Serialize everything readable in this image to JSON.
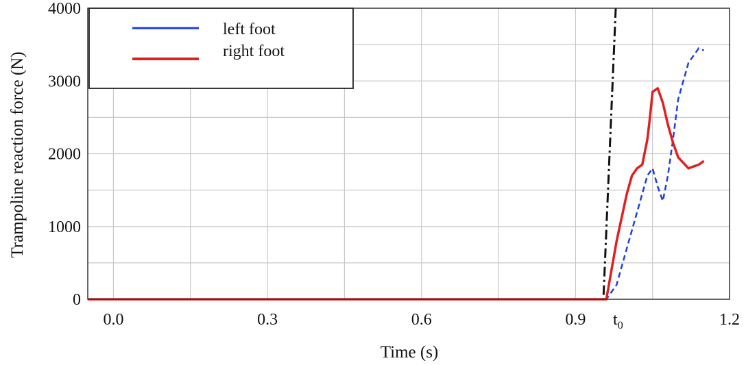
{
  "chart_data": {
    "type": "line",
    "title": "",
    "xlabel": "Time (s)",
    "ylabel": "Trampoline reaction force (N)",
    "xlim": [
      -0.05,
      1.2
    ],
    "ylim": [
      0,
      4000
    ],
    "xticks": [
      0.0,
      0.3,
      0.6,
      0.9,
      1.2
    ],
    "xtick_labels": [
      "0.0",
      "0.3",
      "0.6",
      "0.9",
      "1.2"
    ],
    "yticks": [
      0,
      1000,
      2000,
      3000,
      4000
    ],
    "ytick_labels": [
      "0",
      "1000",
      "2000",
      "3000",
      "4000"
    ],
    "grid": true,
    "legend_position": "top-left",
    "annotation": {
      "label": "t",
      "subscript": "0",
      "x": 0.965
    },
    "series": [
      {
        "name": "left foot",
        "color": "#1f3fe0",
        "style": "dashed",
        "x": [
          -0.05,
          0.0,
          0.3,
          0.6,
          0.9,
          0.95,
          0.96,
          0.98,
          1.0,
          1.02,
          1.04,
          1.05,
          1.06,
          1.07,
          1.08,
          1.09,
          1.1,
          1.12,
          1.14,
          1.15
        ],
        "y": [
          0,
          0,
          0,
          0,
          0,
          0,
          0,
          200,
          700,
          1200,
          1700,
          1800,
          1550,
          1350,
          1700,
          2200,
          2750,
          3250,
          3450,
          3420
        ]
      },
      {
        "name": "right foot",
        "color": "#e02020",
        "style": "solid",
        "x": [
          -0.05,
          0.0,
          0.3,
          0.6,
          0.9,
          0.95,
          0.96,
          0.98,
          1.0,
          1.01,
          1.02,
          1.03,
          1.04,
          1.045,
          1.05,
          1.06,
          1.07,
          1.08,
          1.09,
          1.1,
          1.12,
          1.14,
          1.15
        ],
        "y": [
          0,
          0,
          0,
          0,
          0,
          0,
          0,
          800,
          1450,
          1700,
          1800,
          1850,
          2200,
          2500,
          2850,
          2900,
          2700,
          2400,
          2150,
          1950,
          1800,
          1850,
          1900
        ]
      }
    ]
  }
}
